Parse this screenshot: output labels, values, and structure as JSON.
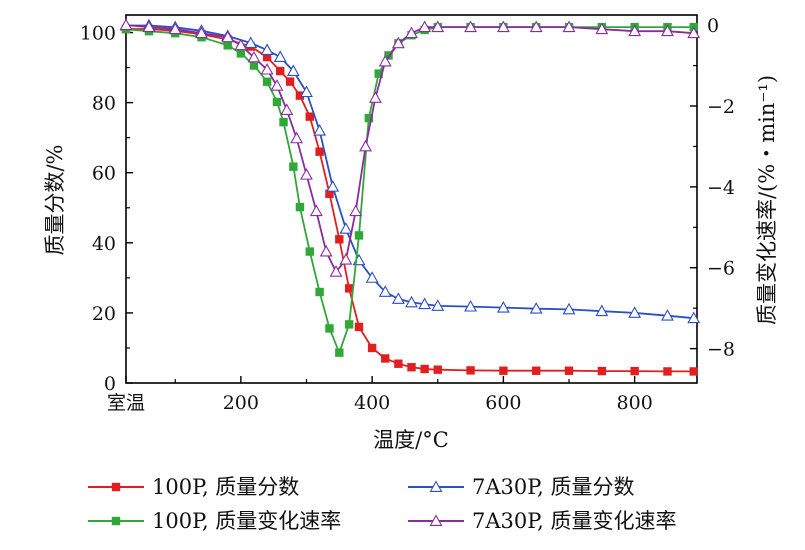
{
  "chart_data": {
    "type": "line",
    "xlabel": "温度/°C",
    "ylabel_left": "质量分数/%",
    "ylabel_right": "质量变化速率/(%・min⁻¹)",
    "x_tick_labels": [
      "室温",
      "200",
      "400",
      "600",
      "800"
    ],
    "x_tick_values": [
      25,
      200,
      400,
      600,
      800
    ],
    "xlim": [
      25,
      895
    ],
    "y_left_ticks": [
      "0",
      "20",
      "40",
      "60",
      "80",
      "100"
    ],
    "y_left_tick_values": [
      0,
      20,
      40,
      60,
      80,
      100
    ],
    "ylim_left": [
      0,
      105
    ],
    "y_right_ticks": [
      "0",
      "−2",
      "−4",
      "−6",
      "−8"
    ],
    "y_right_tick_values": [
      0,
      -2,
      -4,
      -6,
      -8
    ],
    "ylim_right": [
      -8.85,
      0.25
    ],
    "legend": {
      "placement": "bottom",
      "columns": 2
    },
    "series": [
      {
        "name": "100P, 质量分数",
        "axis": "left",
        "color": "#e02020",
        "marker": "square-filled",
        "x": [
          25,
          60,
          100,
          140,
          180,
          215,
          240,
          260,
          275,
          290,
          305,
          320,
          335,
          350,
          365,
          380,
          400,
          420,
          440,
          460,
          480,
          500,
          550,
          600,
          650,
          700,
          750,
          800,
          850,
          890
        ],
        "y": [
          101,
          101,
          100.5,
          99.5,
          98,
          96,
          93,
          89,
          86,
          82,
          76,
          66,
          54,
          41,
          27,
          16,
          10,
          7,
          5.5,
          4.5,
          4,
          3.8,
          3.6,
          3.5,
          3.5,
          3.5,
          3.4,
          3.4,
          3.3,
          3.3
        ]
      },
      {
        "name": "7A30P, 质量分数",
        "axis": "left",
        "color": "#2b4fc4",
        "marker": "triangle-open",
        "x": [
          25,
          60,
          100,
          140,
          180,
          215,
          240,
          260,
          280,
          300,
          320,
          340,
          360,
          380,
          400,
          420,
          440,
          460,
          480,
          500,
          550,
          600,
          650,
          700,
          750,
          800,
          850,
          890
        ],
        "y": [
          102,
          102,
          101.5,
          100.5,
          99,
          97,
          95,
          93,
          89,
          83,
          72,
          56,
          44,
          35,
          30,
          26,
          24,
          23,
          22.5,
          22,
          21.8,
          21.5,
          21.2,
          21,
          20.5,
          20,
          19.2,
          18.5
        ]
      },
      {
        "name": "100P, 质量变化速率",
        "axis": "right",
        "color": "#30a838",
        "marker": "square-filled",
        "x": [
          25,
          60,
          100,
          140,
          180,
          200,
          220,
          240,
          255,
          265,
          280,
          290,
          305,
          320,
          335,
          350,
          365,
          380,
          395,
          410,
          425,
          440,
          460,
          480,
          500,
          550,
          600,
          650,
          700,
          750,
          800,
          850,
          890
        ],
        "y": [
          -0.1,
          -0.15,
          -0.2,
          -0.3,
          -0.5,
          -0.7,
          -1.0,
          -1.4,
          -1.9,
          -2.4,
          -3.5,
          -4.5,
          -5.6,
          -6.6,
          -7.5,
          -8.1,
          -7.4,
          -5.2,
          -2.3,
          -1.2,
          -0.75,
          -0.45,
          -0.25,
          -0.12,
          -0.05,
          -0.05,
          -0.05,
          -0.05,
          -0.05,
          -0.05,
          -0.05,
          -0.05,
          -0.05
        ]
      },
      {
        "name": "7A30P, 质量变化速率",
        "axis": "right",
        "color": "#8a2c9e",
        "marker": "triangle-open",
        "x": [
          25,
          60,
          100,
          140,
          180,
          200,
          220,
          240,
          255,
          270,
          285,
          300,
          315,
          330,
          345,
          360,
          375,
          390,
          405,
          420,
          440,
          460,
          480,
          500,
          550,
          600,
          650,
          700,
          750,
          800,
          850,
          890
        ],
        "y": [
          0.0,
          -0.05,
          -0.1,
          -0.2,
          -0.3,
          -0.5,
          -0.8,
          -1.1,
          -1.5,
          -2.1,
          -2.8,
          -3.7,
          -4.6,
          -5.6,
          -6.1,
          -5.8,
          -4.6,
          -3.0,
          -1.8,
          -0.9,
          -0.45,
          -0.2,
          -0.05,
          -0.05,
          -0.05,
          -0.05,
          -0.05,
          -0.05,
          -0.1,
          -0.15,
          -0.15,
          -0.2
        ]
      }
    ]
  }
}
